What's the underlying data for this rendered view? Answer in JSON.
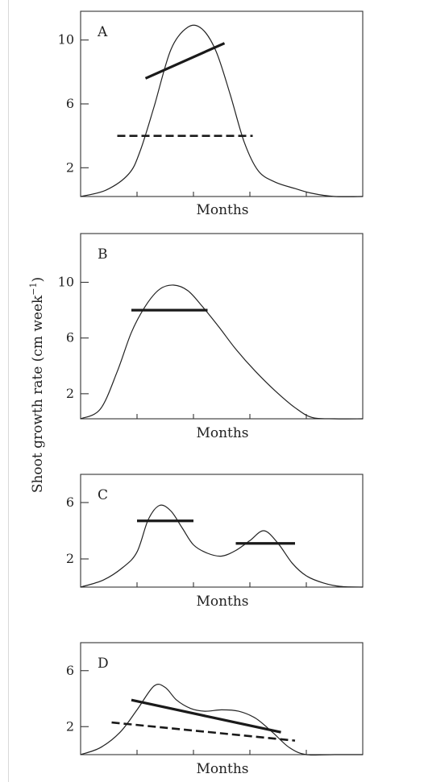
{
  "chart_data": [
    {
      "type": "line",
      "panel_label": "A",
      "xlabel": "Months",
      "y_ticks": [
        2,
        6,
        10
      ],
      "ylim": [
        0.2,
        11.8
      ],
      "xlim": [
        0,
        10
      ],
      "x_ticks_unlabeled": [
        2,
        4,
        6,
        8
      ],
      "series": [
        {
          "style": "curve",
          "x": [
            0,
            0.9,
            1.7,
            2.1,
            2.6,
            3.2,
            3.8,
            4.3,
            4.8,
            5.3,
            5.8,
            6.3,
            6.9,
            7.6,
            8.2,
            9.0,
            10
          ],
          "y": [
            0.2,
            0.6,
            1.6,
            3.0,
            5.8,
            9.4,
            10.8,
            10.7,
            9.3,
            6.6,
            3.6,
            1.8,
            1.1,
            0.7,
            0.4,
            0.2,
            0.2
          ]
        },
        {
          "style": "solid",
          "x": [
            2.3,
            5.1
          ],
          "y": [
            7.6,
            9.8
          ]
        },
        {
          "style": "dashed",
          "x": [
            1.3,
            6.1
          ],
          "y": [
            4.0,
            4.0
          ]
        }
      ]
    },
    {
      "type": "line",
      "panel_label": "B",
      "xlabel": "Months",
      "y_ticks": [
        2,
        6,
        10
      ],
      "ylim": [
        0.2,
        13.5
      ],
      "xlim": [
        0,
        10
      ],
      "x_ticks_unlabeled": [
        2,
        4,
        6,
        8
      ],
      "series": [
        {
          "style": "curve",
          "x": [
            0,
            0.7,
            1.3,
            1.8,
            2.3,
            2.8,
            3.3,
            3.8,
            4.3,
            4.9,
            5.5,
            6.2,
            6.9,
            7.6,
            8.2,
            9.0,
            10
          ],
          "y": [
            0.2,
            0.9,
            3.6,
            6.4,
            8.3,
            9.5,
            9.8,
            9.4,
            8.3,
            6.8,
            5.2,
            3.6,
            2.2,
            1.0,
            0.3,
            0.2,
            0.2
          ]
        },
        {
          "style": "solid",
          "x": [
            1.8,
            4.5
          ],
          "y": [
            8.0,
            8.0
          ]
        }
      ]
    },
    {
      "type": "line",
      "panel_label": "C",
      "xlabel": "Months",
      "y_ticks": [
        2,
        6
      ],
      "ylim": [
        0,
        8
      ],
      "xlim": [
        0,
        10
      ],
      "x_ticks_unlabeled": [
        2,
        4,
        6,
        8
      ],
      "series": [
        {
          "style": "curve",
          "x": [
            0,
            0.8,
            1.5,
            2.0,
            2.4,
            2.8,
            3.2,
            3.6,
            4.0,
            4.5,
            5.0,
            5.5,
            6.0,
            6.5,
            7.0,
            7.5,
            8.0,
            8.6,
            9.2,
            10
          ],
          "y": [
            0,
            0.5,
            1.4,
            2.5,
            4.8,
            5.8,
            5.4,
            4.2,
            3.0,
            2.4,
            2.2,
            2.6,
            3.3,
            4.0,
            3.1,
            1.7,
            0.8,
            0.3,
            0.05,
            0
          ]
        },
        {
          "style": "solid",
          "x": [
            2.0,
            4.0
          ],
          "y": [
            4.7,
            4.7
          ]
        },
        {
          "style": "solid",
          "x": [
            5.5,
            7.6
          ],
          "y": [
            3.1,
            3.1
          ]
        }
      ]
    },
    {
      "type": "line",
      "panel_label": "D",
      "xlabel": "Months",
      "y_ticks": [
        2,
        6
      ],
      "ylim": [
        0,
        8
      ],
      "xlim": [
        0,
        10
      ],
      "x_ticks_unlabeled": [
        2,
        4,
        6,
        8
      ],
      "series": [
        {
          "style": "curve",
          "x": [
            0,
            0.7,
            1.4,
            2.0,
            2.6,
            3.0,
            3.4,
            3.9,
            4.4,
            5.0,
            5.6,
            6.2,
            6.8,
            7.4,
            8.0,
            9.0,
            10
          ],
          "y": [
            0,
            0.5,
            1.6,
            3.2,
            4.9,
            4.8,
            3.9,
            3.3,
            3.1,
            3.2,
            3.1,
            2.6,
            1.6,
            0.5,
            0,
            0,
            0
          ]
        },
        {
          "style": "solid",
          "x": [
            1.8,
            7.1
          ],
          "y": [
            3.9,
            1.6
          ]
        },
        {
          "style": "dashed",
          "x": [
            1.1,
            7.6
          ],
          "y": [
            2.3,
            1.0
          ]
        }
      ]
    }
  ],
  "shared": {
    "ylabel_main": "Shoot growth rate (cm week",
    "ylabel_sup": "−1",
    "ylabel_close": ")"
  }
}
